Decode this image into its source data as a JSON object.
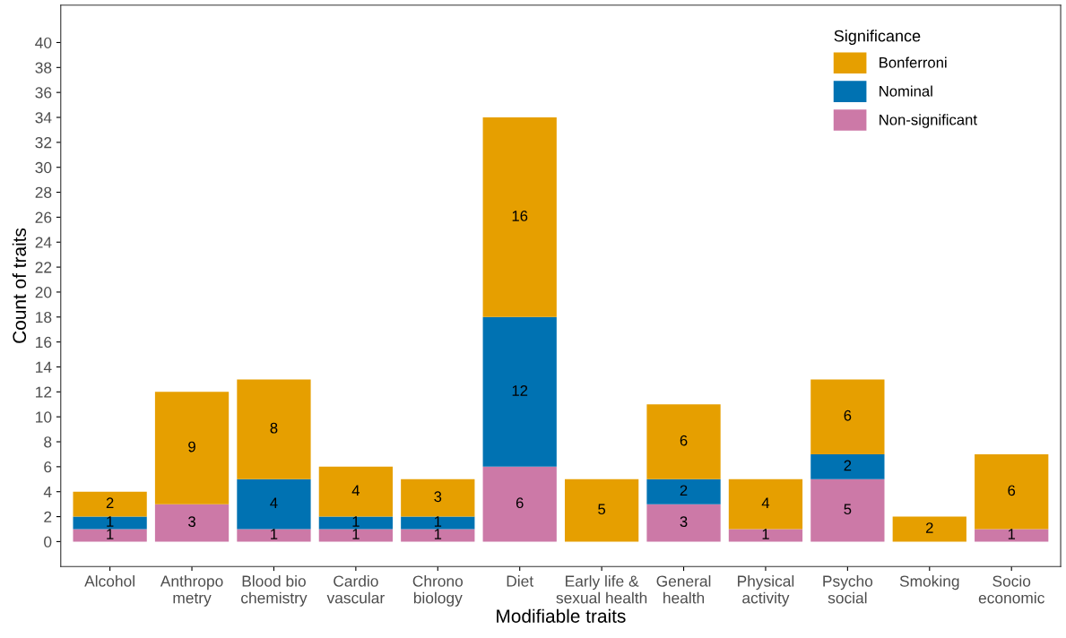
{
  "chart_data": {
    "type": "bar",
    "stacked": true,
    "xlabel": "Modifiable traits",
    "ylabel": "Count of traits",
    "legend_title": "Significance",
    "legend": "top right",
    "grid": false,
    "data_labels": true,
    "categories": [
      "Alcohol",
      "Anthropo\nmetry",
      "Blood bio\nchemistry",
      "Cardio\nvascular",
      "Chrono\nbiology",
      "Diet",
      "Early life &\nsexual health",
      "General\nhealth",
      "Physical\nactivity",
      "Psycho\nsocial",
      "Smoking",
      "Socio\neconomic"
    ],
    "series": [
      {
        "name": "Non-significant",
        "color": "#cc79a7",
        "values": [
          1,
          3,
          1,
          1,
          1,
          6,
          null,
          3,
          1,
          5,
          null,
          1
        ]
      },
      {
        "name": "Nominal",
        "color": "#0072b2",
        "values": [
          1,
          null,
          4,
          1,
          1,
          12,
          null,
          2,
          null,
          2,
          null,
          null
        ]
      },
      {
        "name": "Bonferroni",
        "color": "#e69f00",
        "values": [
          2,
          9,
          8,
          4,
          3,
          16,
          5,
          6,
          4,
          6,
          2,
          6
        ]
      }
    ],
    "ylim": [
      -2,
      43
    ],
    "yticks": [
      0,
      2,
      4,
      6,
      8,
      10,
      12,
      14,
      16,
      18,
      20,
      22,
      24,
      26,
      28,
      30,
      32,
      34,
      36,
      38,
      40
    ]
  }
}
